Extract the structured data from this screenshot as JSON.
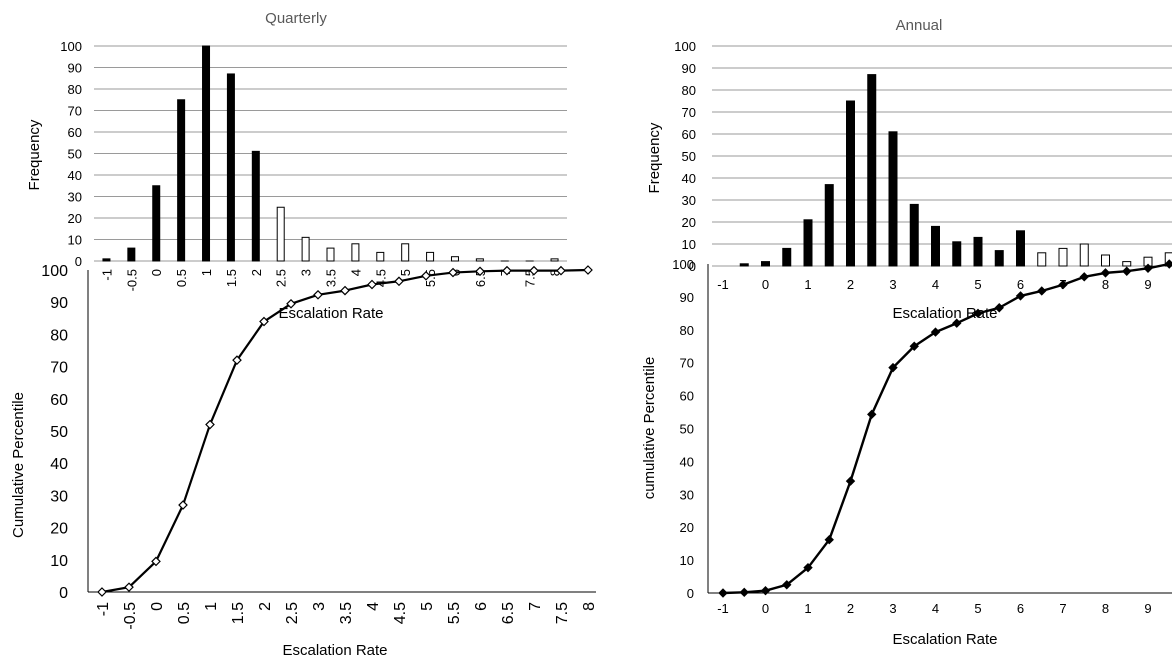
{
  "chart_data": [
    {
      "type": "bar",
      "title": "Quarterly",
      "xlabel": "Escalation Rate",
      "ylabel": "Frequency",
      "ylim": [
        0,
        100
      ],
      "yticks": [
        0,
        10,
        20,
        30,
        40,
        50,
        60,
        70,
        80,
        90,
        100
      ],
      "grid": true,
      "categories": [
        "-1",
        "-0.5",
        "0",
        "0.5",
        "1",
        "1.5",
        "2",
        "2.5",
        "3",
        "3.5",
        "4",
        "4.5",
        "5",
        "5.5",
        "6",
        "6.5",
        "7",
        "7.5",
        "8"
      ],
      "values": [
        1,
        6,
        35,
        75,
        100,
        87,
        51,
        25,
        11,
        6,
        8,
        4,
        8,
        4,
        2,
        1,
        0,
        0,
        1
      ],
      "filled": [
        true,
        true,
        true,
        true,
        true,
        true,
        true,
        false,
        false,
        false,
        false,
        false,
        false,
        false,
        false,
        false,
        false,
        false,
        false
      ]
    },
    {
      "type": "bar",
      "title": "Annual",
      "xlabel": "Escalation Rate",
      "ylabel": "Frequency",
      "ylim": [
        0,
        100
      ],
      "yticks": [
        0,
        10,
        20,
        30,
        40,
        50,
        60,
        70,
        80,
        90,
        100
      ],
      "grid": true,
      "x": [
        -0.5,
        0,
        0.5,
        1,
        1.5,
        2,
        2.5,
        3,
        3.5,
        4,
        4.5,
        5,
        5.5,
        6,
        6.5,
        7,
        7.5,
        8,
        8.5,
        9,
        9.5
      ],
      "values": [
        1,
        2,
        8,
        21,
        37,
        75,
        87,
        61,
        28,
        18,
        11,
        13,
        7,
        16,
        6,
        8,
        10,
        5,
        2,
        4,
        6
      ],
      "filled": [
        true,
        true,
        true,
        true,
        true,
        true,
        true,
        true,
        true,
        true,
        true,
        true,
        true,
        true,
        false,
        false,
        false,
        false,
        false,
        false,
        false
      ],
      "xticks": [
        "-1",
        "0",
        "1",
        "2",
        "3",
        "4",
        "5",
        "6",
        "7",
        "8",
        "9"
      ]
    },
    {
      "type": "line",
      "xlabel": "Escalation Rate",
      "ylabel": "Cumulative Percentile",
      "ylim": [
        0,
        100
      ],
      "yticks": [
        0,
        10,
        20,
        30,
        40,
        50,
        60,
        70,
        80,
        90,
        100
      ],
      "grid": false,
      "marker": "hollow-diamond",
      "categories": [
        "-1",
        "-0.5",
        "0",
        "0.5",
        "1",
        "1.5",
        "2",
        "2.5",
        "3",
        "3.5",
        "4",
        "4.5",
        "5",
        "5.5",
        "6",
        "6.5",
        "7",
        "7.5",
        "8"
      ],
      "values": [
        0,
        1.5,
        9.5,
        27,
        52,
        72,
        84,
        89.5,
        92.3,
        93.6,
        95.5,
        96.5,
        98.2,
        99.2,
        99.6,
        99.8,
        99.8,
        99.8,
        100
      ]
    },
    {
      "type": "line",
      "xlabel": "Escalation Rate",
      "ylabel": "cumulative Percentile",
      "ylim": [
        0,
        100
      ],
      "yticks": [
        0,
        10,
        20,
        30,
        40,
        50,
        60,
        70,
        80,
        90,
        100
      ],
      "grid": false,
      "marker": "filled-diamond",
      "x": [
        -1,
        -0.5,
        0,
        0.5,
        1,
        1.5,
        2,
        2.5,
        3,
        3.5,
        4,
        4.5,
        5,
        5.5,
        6,
        6.5,
        7,
        7.5,
        8,
        8.5,
        9,
        9.5
      ],
      "values": [
        0,
        0.2,
        0.7,
        2.5,
        7.7,
        16.2,
        34,
        54.3,
        68.5,
        75,
        79.3,
        82,
        85,
        86.7,
        90.3,
        91.8,
        93.7,
        96.1,
        97.3,
        97.8,
        98.7,
        100
      ],
      "xticks": [
        "-1",
        "0",
        "1",
        "2",
        "3",
        "4",
        "5",
        "6",
        "7",
        "8",
        "9"
      ]
    }
  ]
}
